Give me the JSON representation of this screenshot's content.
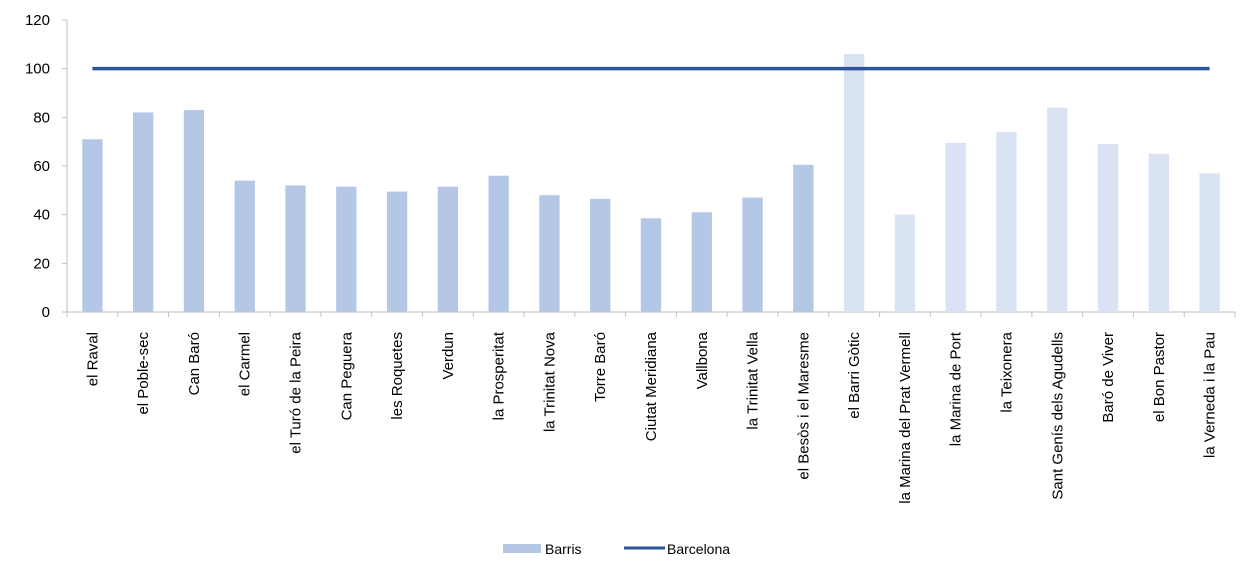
{
  "chart_data": {
    "type": "bar",
    "categories": [
      "el Raval",
      "el Poble-sec",
      "Can Baró",
      "el Carmel",
      "el Turó de la Peira",
      "Can Peguera",
      "les Roquetes",
      "Verdun",
      "la Prosperitat",
      "la Trinitat Nova",
      "Torre Baró",
      "Ciutat Meridiana",
      "Vallbona",
      "la Trinitat Vella",
      "el Besòs i el Maresme",
      "el Barri Gòtic",
      "la Marina del Prat Vermell",
      "la Marina de Port",
      "la Teixonera",
      "Sant Genís dels Agudells",
      "Baró de Viver",
      "el Bon Pastor",
      "la Verneda i la Pau"
    ],
    "series": [
      {
        "name": "Barris",
        "type": "bar",
        "values": [
          71,
          82,
          83,
          54,
          52,
          51.5,
          49.5,
          51.5,
          56,
          48,
          46.5,
          38.5,
          41,
          47,
          60.5,
          106,
          40,
          69.5,
          74,
          84,
          69,
          65,
          57
        ],
        "colors": [
          "#b4c7e7",
          "#b4c7e7",
          "#b4c7e7",
          "#b4c7e7",
          "#b4c7e7",
          "#b4c7e7",
          "#b4c7e7",
          "#b4c7e7",
          "#b4c7e7",
          "#b4c7e7",
          "#b4c7e7",
          "#b4c7e7",
          "#b4c7e7",
          "#b4c7e7",
          "#b4c7e7",
          "#dae3f3",
          "#dae3f3",
          "#dae3f3",
          "#dae3f3",
          "#dae3f3",
          "#dae3f3",
          "#dae3f3",
          "#dae3f3"
        ]
      },
      {
        "name": "Barcelona",
        "type": "line",
        "values": [
          100,
          100,
          100,
          100,
          100,
          100,
          100,
          100,
          100,
          100,
          100,
          100,
          100,
          100,
          100,
          100,
          100,
          100,
          100,
          100,
          100,
          100,
          100
        ],
        "color": "#2f5597"
      }
    ],
    "title": "",
    "xlabel": "",
    "ylabel": "",
    "ylim": [
      0,
      120
    ],
    "yticks": [
      0,
      20,
      40,
      60,
      80,
      100,
      120
    ],
    "grid": false,
    "legend_position": "bottom"
  }
}
